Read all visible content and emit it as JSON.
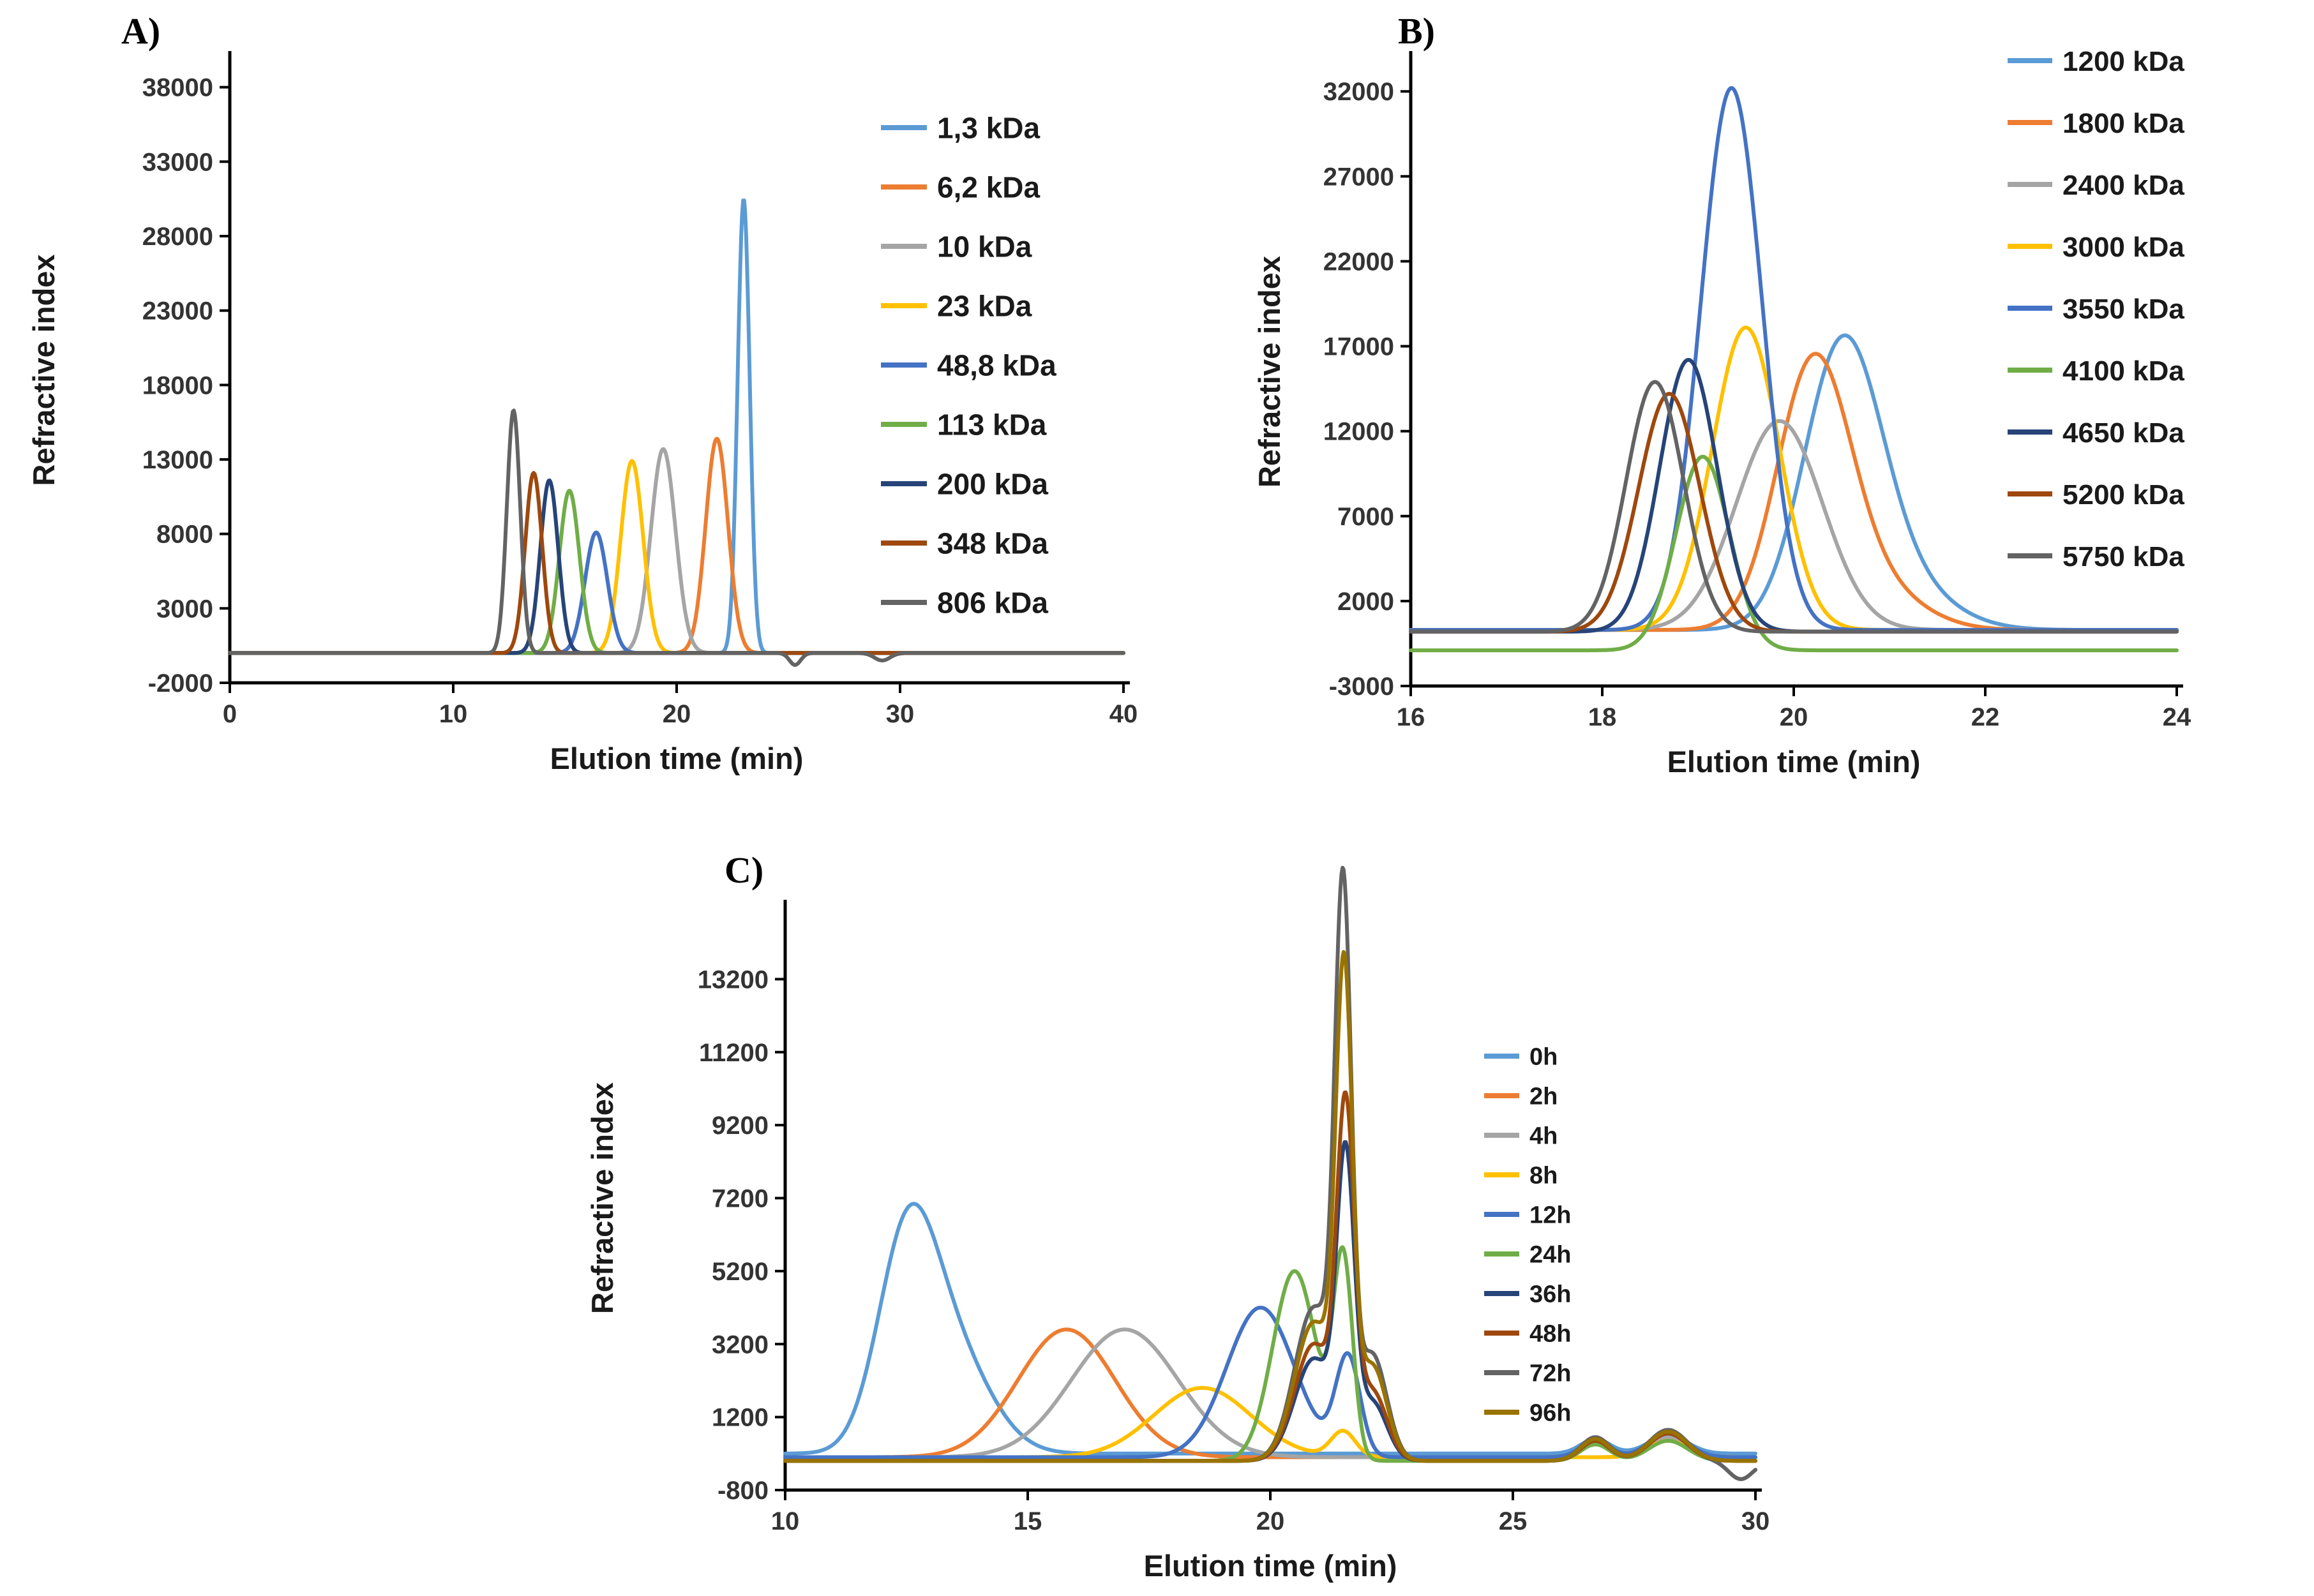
{
  "figure": {
    "background": "#ffffff",
    "axis_color": "#000000",
    "text_color": "#1a1a1a"
  },
  "peak_format": "[center_min, height, sigma_min]",
  "chart_data": [
    {
      "id": "A",
      "panel_label": "A)",
      "type": "line",
      "title": "",
      "xlabel": "Elution time (min)",
      "ylabel": "Refractive index",
      "xlim": [
        0,
        40
      ],
      "ylim": [
        -2000,
        40000
      ],
      "xticks": [
        0,
        10,
        20,
        30,
        40
      ],
      "yticks": [
        38000,
        33000,
        28000,
        23000,
        18000,
        13000,
        8000,
        3000,
        -2000
      ],
      "grid": false,
      "legend_position": "right",
      "series": [
        {
          "name": "1,3 kDa",
          "color": "#5B9BD5",
          "baseline": 0,
          "peaks": [
            [
              23.0,
              30500,
              0.27
            ]
          ]
        },
        {
          "name": "6,2 kDa",
          "color": "#ED7D31",
          "baseline": 0,
          "peaks": [
            [
              21.8,
              14400,
              0.5
            ]
          ]
        },
        {
          "name": "10 kDa",
          "color": "#A5A5A5",
          "baseline": 0,
          "peaks": [
            [
              19.4,
              13700,
              0.55
            ]
          ]
        },
        {
          "name": "23 kDa",
          "color": "#FFC000",
          "baseline": 0,
          "peaks": [
            [
              18.0,
              12900,
              0.5
            ]
          ]
        },
        {
          "name": "48,8 kDa",
          "color": "#4472C4",
          "baseline": 0,
          "peaks": [
            [
              16.4,
              8100,
              0.5
            ]
          ]
        },
        {
          "name": "113 kDa",
          "color": "#70AD47",
          "baseline": 0,
          "peaks": [
            [
              15.2,
              10900,
              0.45
            ]
          ]
        },
        {
          "name": "200 kDa",
          "color": "#264478",
          "baseline": 0,
          "peaks": [
            [
              14.3,
              11600,
              0.4
            ]
          ]
        },
        {
          "name": "348 kDa",
          "color": "#9E480E",
          "baseline": 0,
          "peaks": [
            [
              13.6,
              12100,
              0.38
            ]
          ]
        },
        {
          "name": "806 kDa",
          "color": "#636363",
          "baseline": 0,
          "peaks": [
            [
              12.7,
              16300,
              0.3
            ],
            [
              25.3,
              -800,
              0.25
            ],
            [
              29.2,
              -500,
              0.35
            ]
          ]
        }
      ]
    },
    {
      "id": "B",
      "panel_label": "B)",
      "type": "line",
      "title": "",
      "xlabel": "Elution time (min)",
      "ylabel": "Refractive index",
      "xlim": [
        16,
        24
      ],
      "ylim": [
        -3000,
        34000
      ],
      "xticks": [
        16,
        18,
        20,
        22,
        24
      ],
      "yticks": [
        32000,
        27000,
        22000,
        17000,
        12000,
        7000,
        2000,
        -3000
      ],
      "grid": false,
      "legend_position": "right",
      "series": [
        {
          "name": "1200 kDa",
          "color": "#5B9BD5",
          "baseline": 300,
          "peaks": [
            [
              20.5,
              15300,
              0.4
            ],
            [
              21.0,
              3000,
              0.55
            ]
          ]
        },
        {
          "name": "1800 kDa",
          "color": "#ED7D31",
          "baseline": 300,
          "peaks": [
            [
              20.2,
              15000,
              0.38
            ],
            [
              20.8,
              2500,
              0.5
            ]
          ]
        },
        {
          "name": "2400 kDa",
          "color": "#A5A5A5",
          "baseline": 300,
          "peaks": [
            [
              19.85,
              12300,
              0.45
            ]
          ]
        },
        {
          "name": "3000 kDa",
          "color": "#FFC000",
          "baseline": 300,
          "peaks": [
            [
              19.5,
              17800,
              0.35
            ]
          ]
        },
        {
          "name": "3550 kDa",
          "color": "#4472C4",
          "baseline": 300,
          "peaks": [
            [
              19.35,
              31900,
              0.32
            ]
          ]
        },
        {
          "name": "4100 kDa",
          "color": "#70AD47",
          "baseline": -900,
          "peaks": [
            [
              19.05,
              11400,
              0.28
            ]
          ]
        },
        {
          "name": "4650 kDa",
          "color": "#264478",
          "baseline": 200,
          "peaks": [
            [
              18.9,
              16000,
              0.3
            ]
          ]
        },
        {
          "name": "5200 kDa",
          "color": "#9E480E",
          "baseline": 200,
          "peaks": [
            [
              18.7,
              14000,
              0.32
            ]
          ]
        },
        {
          "name": "5750 kDa",
          "color": "#636363",
          "baseline": 200,
          "peaks": [
            [
              18.55,
              14700,
              0.3
            ]
          ]
        }
      ]
    },
    {
      "id": "C",
      "panel_label": "C)",
      "type": "line",
      "title": "",
      "xlabel": "Elution time (min)",
      "ylabel": "Refractive index",
      "xlim": [
        10,
        30
      ],
      "ylim": [
        -800,
        15200
      ],
      "xticks": [
        10,
        15,
        20,
        25,
        30
      ],
      "yticks": [
        13200,
        11200,
        9200,
        7200,
        5200,
        3200,
        1200,
        -800
      ],
      "grid": false,
      "legend_position": "right",
      "series": [
        {
          "name": "0h",
          "color": "#5B9BD5",
          "baseline": 200,
          "peaks": [
            [
              12.5,
              5200,
              0.6
            ],
            [
              13.4,
              2800,
              0.8
            ],
            [
              26.7,
              400,
              0.3
            ],
            [
              28.2,
              500,
              0.4
            ]
          ]
        },
        {
          "name": "2h",
          "color": "#ED7D31",
          "baseline": 100,
          "peaks": [
            [
              15.8,
              3500,
              1.0
            ],
            [
              26.7,
              350,
              0.3
            ],
            [
              28.2,
              450,
              0.4
            ]
          ]
        },
        {
          "name": "4h",
          "color": "#A5A5A5",
          "baseline": 100,
          "peaks": [
            [
              17.0,
              3500,
              1.1
            ],
            [
              28.2,
              550,
              0.4
            ]
          ]
        },
        {
          "name": "8h",
          "color": "#FFC000",
          "baseline": 100,
          "peaks": [
            [
              18.6,
              1900,
              1.0
            ],
            [
              21.5,
              700,
              0.25
            ],
            [
              28.2,
              450,
              0.4
            ]
          ]
        },
        {
          "name": "12h",
          "color": "#4472C4",
          "baseline": 100,
          "peaks": [
            [
              19.8,
              4100,
              0.7
            ],
            [
              21.6,
              2700,
              0.25
            ],
            [
              26.7,
              450,
              0.3
            ],
            [
              28.2,
              650,
              0.4
            ]
          ]
        },
        {
          "name": "24h",
          "color": "#70AD47",
          "baseline": 0,
          "peaks": [
            [
              20.5,
              5200,
              0.45
            ],
            [
              21.5,
              5400,
              0.2
            ],
            [
              26.7,
              450,
              0.3
            ],
            [
              28.2,
              550,
              0.4
            ]
          ]
        },
        {
          "name": "36h",
          "color": "#264478",
          "baseline": 0,
          "peaks": [
            [
              20.9,
              2800,
              0.4
            ],
            [
              21.55,
              7700,
              0.18
            ],
            [
              22.1,
              1600,
              0.3
            ],
            [
              26.7,
              550,
              0.3
            ],
            [
              28.2,
              750,
              0.4
            ],
            [
              29.7,
              -500,
              0.25
            ]
          ]
        },
        {
          "name": "48h",
          "color": "#9E480E",
          "baseline": 0,
          "peaks": [
            [
              20.9,
              3200,
              0.4
            ],
            [
              21.55,
              8900,
              0.18
            ],
            [
              22.1,
              1900,
              0.3
            ],
            [
              26.7,
              550,
              0.3
            ],
            [
              28.2,
              750,
              0.4
            ]
          ]
        },
        {
          "name": "72h",
          "color": "#636363",
          "baseline": 0,
          "peaks": [
            [
              20.9,
              4200,
              0.4
            ],
            [
              21.5,
              14500,
              0.17
            ],
            [
              22.1,
              2900,
              0.3
            ],
            [
              26.7,
              650,
              0.3
            ],
            [
              28.2,
              850,
              0.4
            ],
            [
              29.7,
              -500,
              0.25
            ]
          ]
        },
        {
          "name": "96h",
          "color": "#997300",
          "baseline": 0,
          "peaks": [
            [
              20.9,
              3800,
              0.4
            ],
            [
              21.52,
              12400,
              0.17
            ],
            [
              22.1,
              2600,
              0.3
            ],
            [
              26.7,
              600,
              0.3
            ],
            [
              28.2,
              800,
              0.4
            ]
          ]
        }
      ]
    }
  ]
}
